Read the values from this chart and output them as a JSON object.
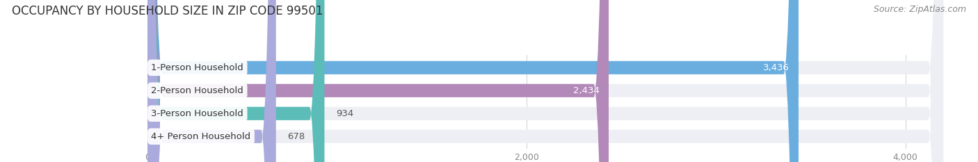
{
  "title": "OCCUPANCY BY HOUSEHOLD SIZE IN ZIP CODE 99501",
  "source": "Source: ZipAtlas.com",
  "categories": [
    "1-Person Household",
    "2-Person Household",
    "3-Person Household",
    "4+ Person Household"
  ],
  "values": [
    3436,
    2434,
    934,
    678
  ],
  "bar_colors": [
    "#6aaee0",
    "#b289b8",
    "#5bbcb8",
    "#aaaadc"
  ],
  "bar_bg_color": "#eeeff4",
  "label_colors": [
    "#ffffff",
    "#ffffff",
    "#555555",
    "#555555"
  ],
  "data_max": 4000,
  "xlim_min": -30,
  "xlim_max": 4280,
  "xticks": [
    0,
    2000,
    4000
  ],
  "title_fontsize": 12,
  "source_fontsize": 9,
  "bar_label_fontsize": 9.5,
  "cat_label_fontsize": 9.5,
  "tick_fontsize": 9,
  "fig_bg": "#ffffff",
  "plot_bg": "#ffffff",
  "bar_height": 0.58,
  "bar_gap": 0.42
}
